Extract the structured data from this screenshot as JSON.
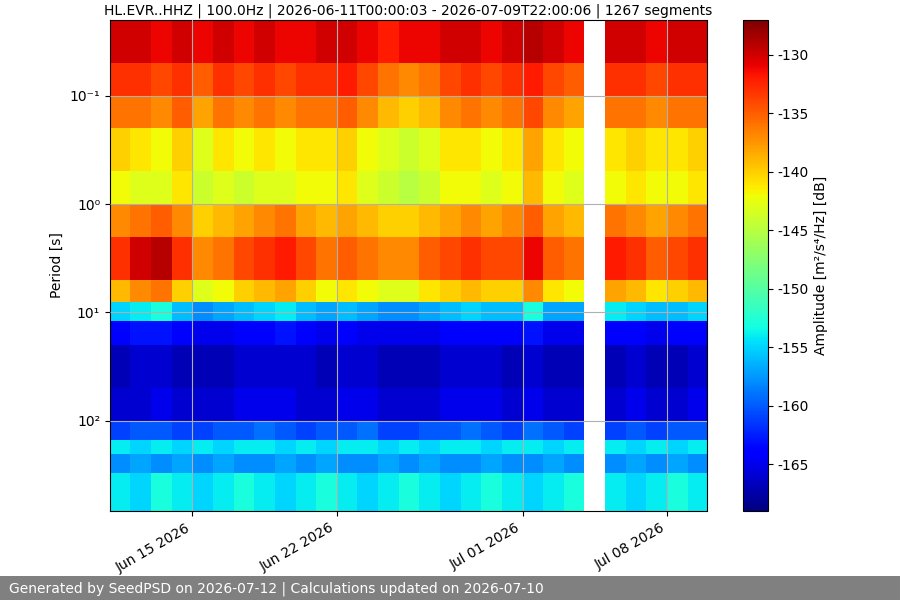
{
  "chart_data": {
    "type": "heatmap",
    "title": "HL.EVR..HHZ | 100.0Hz | 2026-06-11T00:00:03 - 2026-07-09T22:00:06 | 1267 segments",
    "y_label": "Period [s]",
    "colorbar_label": "Amplitude [m²/s⁴/Hz] [dB]",
    "footer": "Generated by SeedPSD on 2026-07-12 | Calculations updated on 2026-07-10",
    "color": "jet",
    "log": "y",
    "grid": true,
    "x": [
      "2026-06-11",
      "2026-06-12",
      "2026-06-13",
      "2026-06-14",
      "2026-06-15",
      "2026-06-16",
      "2026-06-17",
      "2026-06-18",
      "2026-06-19",
      "2026-06-20",
      "2026-06-21",
      "2026-06-22",
      "2026-06-23",
      "2026-06-24",
      "2026-06-25",
      "2026-06-26",
      "2026-06-27",
      "2026-06-28",
      "2026-06-29",
      "2026-06-30",
      "2026-07-01",
      "2026-07-02",
      "2026-07-03",
      "2026-07-04",
      "2026-07-05",
      "2026-07-06",
      "2026-07-07",
      "2026-07-08",
      "2026-07-09",
      "2026-07-10"
    ],
    "y": [
      0.02,
      0.05,
      0.1,
      0.2,
      0.5,
      1,
      2,
      5,
      8,
      12,
      20,
      50,
      100,
      150,
      200,
      300,
      680
    ],
    "cells": [
      [
        -130,
        -130,
        -131,
        -130,
        -131,
        -130,
        -131,
        -130,
        -131,
        -131,
        -130,
        -130,
        -131,
        -132,
        -131,
        -131,
        -130,
        -130,
        -131,
        -130,
        -129,
        -130,
        -131,
        null,
        -130,
        -130,
        -131,
        -130,
        -130
      ],
      [
        -133,
        -133,
        -134,
        -133,
        -135,
        -133,
        -134,
        -133,
        -134,
        -133,
        -133,
        -132,
        -134,
        -136,
        -137,
        -136,
        -134,
        -133,
        -134,
        -133,
        -132,
        -134,
        -135,
        null,
        -133,
        -133,
        -134,
        -133,
        -133
      ],
      [
        -136,
        -136,
        -137,
        -135,
        -138,
        -136,
        -137,
        -136,
        -137,
        -136,
        -136,
        -135,
        -137,
        -139,
        -140,
        -139,
        -137,
        -136,
        -137,
        -136,
        -134,
        -137,
        -138,
        null,
        -136,
        -136,
        -137,
        -136,
        -136
      ],
      [
        -140,
        -141,
        -142,
        -140,
        -143,
        -141,
        -142,
        -141,
        -142,
        -141,
        -141,
        -140,
        -142,
        -143,
        -144,
        -143,
        -141,
        -141,
        -142,
        -141,
        -138,
        -141,
        -142,
        null,
        -141,
        -140,
        -141,
        -141,
        -140
      ],
      [
        -142,
        -143,
        -143,
        -141,
        -144,
        -143,
        -144,
        -143,
        -143,
        -142,
        -142,
        -141,
        -143,
        -144,
        -145,
        -144,
        -142,
        -142,
        -143,
        -142,
        -139,
        -142,
        -143,
        null,
        -142,
        -141,
        -142,
        -142,
        -141
      ],
      [
        -137,
        -136,
        -135,
        -137,
        -140,
        -139,
        -138,
        -137,
        -136,
        -138,
        -139,
        -138,
        -139,
        -140,
        -140,
        -139,
        -138,
        -137,
        -138,
        -137,
        -135,
        -138,
        -139,
        null,
        -136,
        -137,
        -138,
        -137,
        -136
      ],
      [
        -133,
        -130,
        -129,
        -133,
        -137,
        -136,
        -134,
        -133,
        -132,
        -134,
        -136,
        -135,
        -136,
        -137,
        -137,
        -135,
        -134,
        -133,
        -134,
        -134,
        -131,
        -135,
        -136,
        null,
        -132,
        -133,
        -135,
        -134,
        -133
      ],
      [
        -139,
        -137,
        -136,
        -140,
        -143,
        -142,
        -140,
        -139,
        -138,
        -140,
        -142,
        -141,
        -142,
        -143,
        -143,
        -141,
        -140,
        -139,
        -140,
        -140,
        -137,
        -141,
        -142,
        null,
        -138,
        -139,
        -141,
        -140,
        -139
      ],
      [
        -155,
        -154,
        -153,
        -156,
        -158,
        -157,
        -156,
        -155,
        -154,
        -156,
        -157,
        -156,
        -157,
        -158,
        -158,
        -157,
        -156,
        -155,
        -156,
        -156,
        -153,
        -157,
        -157,
        null,
        -154,
        -155,
        -156,
        -156,
        -155
      ],
      [
        -164,
        -163,
        -163,
        -164,
        -165,
        -165,
        -164,
        -164,
        -163,
        -164,
        -165,
        -164,
        -165,
        -165,
        -165,
        -165,
        -164,
        -164,
        -164,
        -164,
        -163,
        -165,
        -165,
        null,
        -164,
        -164,
        -165,
        -164,
        -164
      ],
      [
        -167,
        -166,
        -166,
        -167,
        -167,
        -167,
        -166,
        -166,
        -166,
        -166,
        -167,
        -166,
        -166,
        -167,
        -167,
        -167,
        -166,
        -166,
        -166,
        -167,
        -166,
        -167,
        -167,
        null,
        -167,
        -166,
        -167,
        -167,
        -166
      ],
      [
        -166,
        -166,
        -165,
        -166,
        -166,
        -166,
        -165,
        -165,
        -165,
        -166,
        -166,
        -165,
        -165,
        -166,
        -166,
        -166,
        -165,
        -165,
        -165,
        -166,
        -165,
        -166,
        -166,
        null,
        -166,
        -165,
        -166,
        -166,
        -165
      ],
      [
        -161,
        -160,
        -160,
        -161,
        -161,
        -160,
        -160,
        -159,
        -160,
        -161,
        -160,
        -160,
        -159,
        -161,
        -161,
        -160,
        -160,
        -159,
        -160,
        -161,
        -159,
        -160,
        -161,
        null,
        -161,
        -160,
        -161,
        -160,
        -160
      ],
      [
        -154,
        -155,
        -154,
        -155,
        -154,
        -155,
        -154,
        -154,
        -155,
        -154,
        -155,
        -154,
        -154,
        -155,
        -154,
        -155,
        -154,
        -154,
        -155,
        -154,
        -154,
        -155,
        -154,
        null,
        -154,
        -155,
        -154,
        -155,
        -154
      ],
      [
        -158,
        -157,
        -158,
        -157,
        -158,
        -157,
        -158,
        -158,
        -157,
        -158,
        -157,
        -158,
        -158,
        -157,
        -158,
        -157,
        -158,
        -158,
        -157,
        -158,
        -158,
        -157,
        -158,
        null,
        -158,
        -157,
        -158,
        -157,
        -158
      ],
      [
        -154,
        -155,
        -153,
        -154,
        -155,
        -154,
        -153,
        -154,
        -155,
        -154,
        -153,
        -154,
        -155,
        -154,
        -153,
        -154,
        -155,
        -154,
        -153,
        -154,
        -155,
        -154,
        -153,
        null,
        -154,
        -155,
        -154,
        -153,
        -154
      ]
    ],
    "xlim": [
      "2026-06-11T00:00:03",
      "2026-07-09T22:00:06"
    ],
    "xticks": [
      {
        "value": "2026-06-15",
        "label": "Jun 15 2026"
      },
      {
        "value": "2026-06-22",
        "label": "Jun 22 2026"
      },
      {
        "value": "2026-07-01",
        "label": "Jul 01 2026"
      },
      {
        "value": "2026-07-08",
        "label": "Jul 08 2026"
      }
    ],
    "ylim": [
      680,
      0.02
    ],
    "yticks": [
      {
        "value": 0.1,
        "label": "10⁻¹"
      },
      {
        "value": 1,
        "label": "10⁰"
      },
      {
        "value": 10,
        "label": "10¹"
      },
      {
        "value": 100,
        "label": "10²"
      }
    ],
    "clim": [
      -169,
      -127
    ],
    "cticks": [
      -165,
      -160,
      -155,
      -150,
      -145,
      -140,
      -135,
      -130
    ]
  }
}
